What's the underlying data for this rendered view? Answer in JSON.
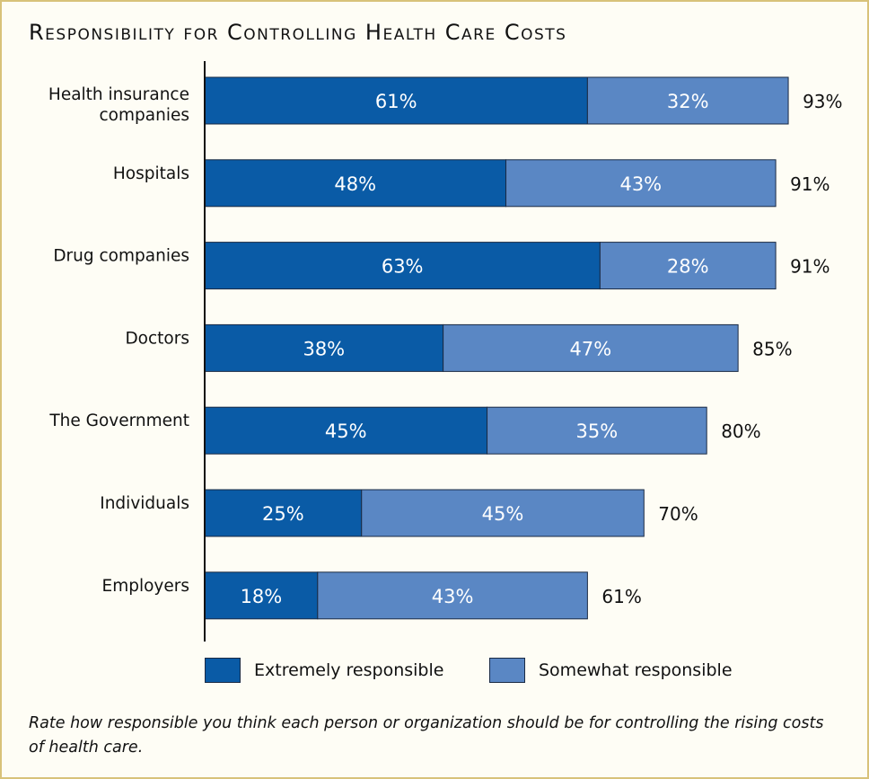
{
  "title": "Responsibility for Controlling Health Care Costs",
  "caption": "Rate how responsible you think each person or organization should be for controlling the rising costs of health care.",
  "colors": {
    "extremely": "#0a5ba6",
    "somewhat": "#5a87c4",
    "bar_border": "#1a2a44",
    "axis": "#111111"
  },
  "legend": {
    "extremely_label": "Extremely responsible",
    "somewhat_label": "Somewhat responsible"
  },
  "chart_data": {
    "type": "bar",
    "orientation": "horizontal",
    "stacked": true,
    "categories": [
      "Health insurance companies",
      "Hospitals",
      "Drug companies",
      "Doctors",
      "The Government",
      "Individuals",
      "Employers"
    ],
    "category_lines": [
      [
        "Health insurance",
        "companies"
      ],
      [
        "Hospitals"
      ],
      [
        "Drug companies"
      ],
      [
        "Doctors"
      ],
      [
        "The Government"
      ],
      [
        "Individuals"
      ],
      [
        "Employers"
      ]
    ],
    "series": [
      {
        "name": "Extremely responsible",
        "values": [
          61,
          48,
          63,
          38,
          45,
          25,
          18
        ],
        "labels": [
          "61%",
          "48%",
          "63%",
          "38%",
          "45%",
          "25%",
          "18%"
        ]
      },
      {
        "name": "Somewhat responsible",
        "values": [
          32,
          43,
          28,
          47,
          35,
          45,
          43
        ],
        "labels": [
          "32%",
          "43%",
          "28%",
          "47%",
          "35%",
          "45%",
          "43%"
        ]
      }
    ],
    "totals": [
      93,
      91,
      91,
      85,
      80,
      70,
      61
    ],
    "total_labels": [
      "93%",
      "91%",
      "91%",
      "85%",
      "80%",
      "70%",
      "61%"
    ],
    "xlim": [
      0,
      100
    ],
    "grid": false,
    "legend_position": "bottom"
  }
}
